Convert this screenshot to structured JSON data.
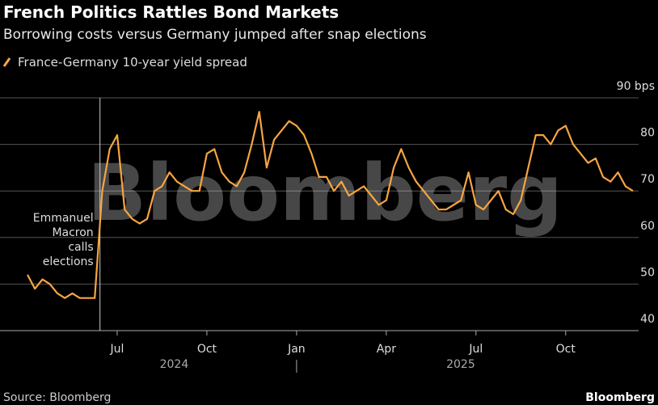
{
  "chart_data": {
    "type": "line",
    "title": "French Politics Rattles Bond Markets",
    "subtitle": "Borrowing costs versus Germany jumped after snap elections",
    "x": [
      "2024-04",
      "2024-04",
      "2024-04",
      "2024-04",
      "2024-05",
      "2024-05",
      "2024-05",
      "2024-05",
      "2024-06",
      "2024-06",
      "2024-06",
      "2024-06",
      "2024-07",
      "2024-07",
      "2024-07",
      "2024-07",
      "2024-08",
      "2024-08",
      "2024-08",
      "2024-08",
      "2024-09",
      "2024-09",
      "2024-09",
      "2024-09",
      "2024-10",
      "2024-10",
      "2024-10",
      "2024-10",
      "2024-11",
      "2024-11",
      "2024-11",
      "2024-11",
      "2024-12",
      "2024-12",
      "2024-12",
      "2024-12",
      "2025-01",
      "2025-01",
      "2025-01",
      "2025-01",
      "2025-02",
      "2025-02",
      "2025-02",
      "2025-02",
      "2025-03",
      "2025-03",
      "2025-03",
      "2025-03",
      "2025-04",
      "2025-04",
      "2025-04",
      "2025-04",
      "2025-05",
      "2025-05",
      "2025-05",
      "2025-05",
      "2025-06",
      "2025-06",
      "2025-06",
      "2025-06",
      "2025-07",
      "2025-07",
      "2025-07",
      "2025-07",
      "2025-08",
      "2025-08",
      "2025-08",
      "2025-08",
      "2025-09",
      "2025-09",
      "2025-09",
      "2025-09",
      "2025-10",
      "2025-10",
      "2025-10",
      "2025-10",
      "2025-11",
      "2025-11",
      "2025-11",
      "2025-11",
      "2025-12",
      "2025-12"
    ],
    "series": [
      {
        "name": "France-Germany 10-year yield spread",
        "color": "#f7a541",
        "values": [
          52,
          49,
          51,
          50,
          48,
          47,
          48,
          47,
          47,
          47,
          70,
          79,
          82,
          66,
          64,
          63,
          64,
          70,
          71,
          74,
          72,
          71,
          70,
          70,
          78,
          79,
          74,
          72,
          71,
          74,
          80,
          87,
          75,
          81,
          83,
          85,
          84,
          82,
          78,
          73,
          73,
          70,
          72,
          69,
          70,
          71,
          69,
          67,
          68,
          75,
          79,
          75,
          72,
          70,
          68,
          66,
          66,
          67,
          68,
          74,
          67,
          66,
          68,
          70,
          66,
          65,
          68,
          75,
          82,
          82,
          80,
          83,
          84,
          80,
          78,
          76,
          77,
          73,
          72,
          74,
          71,
          70
        ]
      }
    ],
    "xticks": [
      {
        "value": "2024-07",
        "label": "Jul"
      },
      {
        "value": "2024-10",
        "label": "Oct"
      },
      {
        "value": "2025-01",
        "label": "Jan"
      },
      {
        "value": "2025-04",
        "label": "Apr"
      },
      {
        "value": "2025-07",
        "label": "Jul"
      },
      {
        "value": "2025-10",
        "label": "Oct"
      }
    ],
    "year_labels": [
      "2024",
      "2025"
    ],
    "ylim": [
      40,
      90
    ],
    "yticks": [
      40,
      50,
      60,
      70,
      80,
      {
        "value": 90,
        "label": "90 bps"
      }
    ],
    "grid": true,
    "annotation": {
      "x": "2024-06",
      "lines": [
        "Emmanuel",
        "Macron",
        "calls",
        "elections"
      ]
    },
    "watermark": "Bloomberg",
    "source": "Source: Bloomberg",
    "logo": "Bloomberg"
  }
}
